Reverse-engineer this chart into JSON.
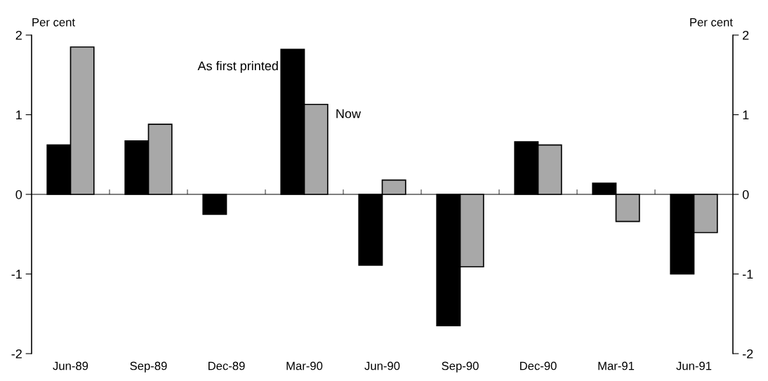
{
  "chart_data": {
    "type": "bar",
    "categories": [
      "Jun-89",
      "Sep-89",
      "Dec-89",
      "Mar-90",
      "Jun-90",
      "Sep-90",
      "Dec-90",
      "Mar-91",
      "Jun-91"
    ],
    "series": [
      {
        "color": "#000000",
        "values": [
          0.62,
          0.67,
          -0.25,
          1.82,
          -0.89,
          -1.65,
          0.66,
          0.14,
          -1.0
        ]
      },
      {
        "color": "#a8a8a8",
        "values": [
          1.85,
          0.88,
          null,
          1.13,
          0.18,
          -0.91,
          0.62,
          -0.34,
          -0.48
        ],
        "axis": "y2"
      }
    ],
    "ylabel": "Per cent",
    "y2label": "Per cent",
    "ylim": [
      -2,
      2
    ],
    "yticks": [
      -2,
      -1,
      0,
      1,
      2
    ],
    "y2lim": [
      -2,
      2
    ],
    "y2ticks": [
      -2,
      -1,
      0,
      1,
      2
    ],
    "annotations": [
      {
        "text": "As first printed",
        "x": "Mar-90",
        "y": 1.6
      },
      {
        "text": "Now",
        "x": "Mar-90",
        "y": 1.0
      }
    ],
    "legend": false
  }
}
